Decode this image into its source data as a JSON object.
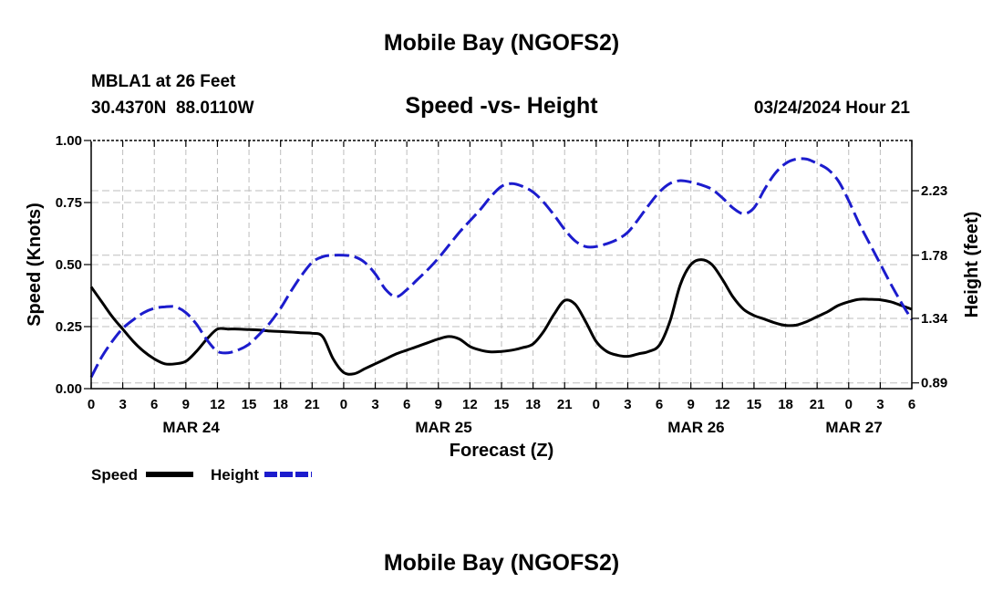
{
  "page": {
    "title_top": "Mobile Bay (NGOFS2)",
    "title_bottom": "Mobile Bay (NGOFS2)"
  },
  "station": {
    "name_line": "MBLA1 at 26 Feet",
    "coord_line": "30.4370N  88.0110W",
    "datetime": "03/24/2024 Hour 21"
  },
  "chart_data": {
    "type": "line",
    "title": "Speed -vs- Height",
    "xlabel": "Forecast (Z)",
    "ylabel_left": "Speed (Knots)",
    "ylabel_right": "Height (feet)",
    "x_unit": "hours",
    "x_range": [
      0,
      78
    ],
    "x_tick_labels": [
      "0",
      "3",
      "6",
      "9",
      "12",
      "15",
      "18",
      "21",
      "0",
      "3",
      "6",
      "9",
      "12",
      "15",
      "18",
      "21",
      "0",
      "3",
      "6",
      "9",
      "12",
      "15",
      "18",
      "21",
      "0",
      "3",
      "6"
    ],
    "date_labels": [
      {
        "label": "MAR 24",
        "x": 9.5
      },
      {
        "label": "MAR 25",
        "x": 33.5
      },
      {
        "label": "MAR 26",
        "x": 57.5
      },
      {
        "label": "MAR 27",
        "x": 72.5
      }
    ],
    "y_left_range": [
      0,
      1
    ],
    "y_left_ticks": [
      {
        "label": "0.00",
        "value": 0
      },
      {
        "label": "0.25",
        "value": 0.25
      },
      {
        "label": "0.50",
        "value": 0.5
      },
      {
        "label": "0.75",
        "value": 0.75
      },
      {
        "label": "1.00",
        "value": 1
      }
    ],
    "y_right_range": [
      0.85,
      2.58
    ],
    "y_right_ticks": [
      {
        "label": "0.89",
        "value": 0.89
      },
      {
        "label": "1.34",
        "value": 1.34
      },
      {
        "label": "1.78",
        "value": 1.78
      },
      {
        "label": "2.23",
        "value": 2.23
      }
    ],
    "grid": true,
    "legend_position": "bottom-left",
    "series": [
      {
        "name": "Speed",
        "axis": "left",
        "color": "#000000",
        "style": "solid",
        "x": [
          0,
          1,
          2,
          3,
          4,
          5,
          6,
          7,
          8,
          9,
          10,
          11,
          12,
          13,
          14,
          15,
          16,
          17,
          18,
          19,
          20,
          21,
          22,
          23,
          24,
          25,
          26,
          27,
          28,
          29,
          30,
          31,
          32,
          33,
          34,
          35,
          36,
          37,
          38,
          39,
          40,
          41,
          42,
          43,
          44,
          45,
          46,
          47,
          48,
          49,
          50,
          51,
          52,
          53,
          54,
          55,
          56,
          57,
          58,
          59,
          60,
          61,
          62,
          63,
          64,
          65,
          66,
          67,
          68,
          69,
          70,
          71,
          72,
          73,
          74,
          75,
          76,
          77,
          78
        ],
        "values": [
          0.41,
          0.35,
          0.29,
          0.24,
          0.19,
          0.15,
          0.12,
          0.1,
          0.1,
          0.11,
          0.15,
          0.2,
          0.24,
          0.24,
          0.24,
          0.238,
          0.236,
          0.232,
          0.23,
          0.228,
          0.225,
          0.223,
          0.21,
          0.12,
          0.065,
          0.06,
          0.08,
          0.1,
          0.12,
          0.14,
          0.155,
          0.17,
          0.185,
          0.2,
          0.21,
          0.2,
          0.17,
          0.155,
          0.148,
          0.15,
          0.155,
          0.165,
          0.18,
          0.23,
          0.3,
          0.355,
          0.34,
          0.27,
          0.19,
          0.15,
          0.135,
          0.13,
          0.14,
          0.15,
          0.175,
          0.27,
          0.42,
          0.5,
          0.52,
          0.5,
          0.44,
          0.37,
          0.32,
          0.295,
          0.28,
          0.265,
          0.255,
          0.256,
          0.27,
          0.29,
          0.31,
          0.335,
          0.35,
          0.36,
          0.36,
          0.358,
          0.35,
          0.335,
          0.32
        ]
      },
      {
        "name": "Height",
        "axis": "right",
        "color": "#1c1ccd",
        "style": "dashed",
        "x": [
          0,
          1,
          2,
          3,
          4,
          5,
          6,
          7,
          8,
          9,
          10,
          11,
          12,
          13,
          14,
          15,
          16,
          17,
          18,
          19,
          20,
          21,
          22,
          23,
          24,
          25,
          26,
          27,
          28,
          29,
          30,
          31,
          32,
          33,
          34,
          35,
          36,
          37,
          38,
          39,
          40,
          41,
          42,
          43,
          44,
          45,
          46,
          47,
          48,
          49,
          50,
          51,
          52,
          53,
          54,
          55,
          56,
          57,
          58,
          59,
          60,
          61,
          62,
          63,
          64,
          65,
          66,
          67,
          68,
          69,
          70,
          71,
          72,
          73,
          74,
          75,
          76,
          77,
          78
        ],
        "values": [
          0.93,
          1.07,
          1.18,
          1.27,
          1.33,
          1.38,
          1.41,
          1.42,
          1.42,
          1.38,
          1.3,
          1.19,
          1.11,
          1.1,
          1.12,
          1.16,
          1.23,
          1.31,
          1.41,
          1.53,
          1.64,
          1.73,
          1.77,
          1.78,
          1.78,
          1.77,
          1.73,
          1.65,
          1.54,
          1.49,
          1.54,
          1.61,
          1.68,
          1.76,
          1.85,
          1.94,
          2.02,
          2.1,
          2.19,
          2.26,
          2.28,
          2.26,
          2.22,
          2.15,
          2.06,
          1.96,
          1.88,
          1.84,
          1.84,
          1.86,
          1.89,
          1.94,
          2.03,
          2.13,
          2.22,
          2.28,
          2.3,
          2.29,
          2.27,
          2.24,
          2.18,
          2.11,
          2.07,
          2.11,
          2.24,
          2.35,
          2.42,
          2.45,
          2.45,
          2.42,
          2.38,
          2.3,
          2.16,
          2.0,
          1.86,
          1.72,
          1.58,
          1.45,
          1.33
        ]
      }
    ]
  },
  "legend": {
    "speed_label": "Speed",
    "height_label": "Height"
  }
}
